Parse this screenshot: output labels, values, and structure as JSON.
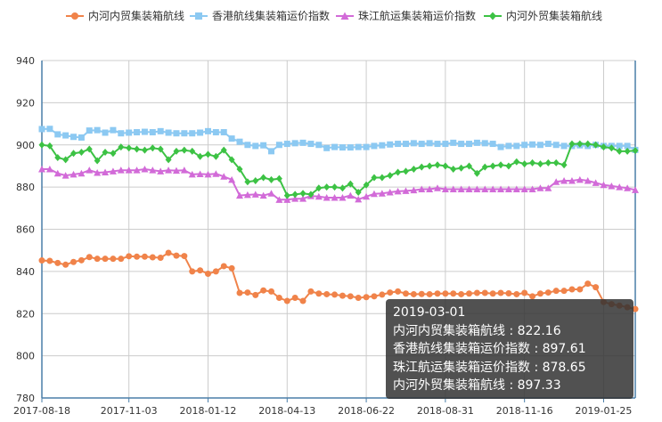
{
  "chart_data": {
    "type": "line",
    "ylim": [
      780,
      940
    ],
    "yticks": [
      780,
      800,
      820,
      840,
      860,
      880,
      900,
      920,
      940
    ],
    "x_tick_labels": [
      "2017-08-18",
      "2017-11-03",
      "2018-01-12",
      "2018-04-13",
      "2018-06-22",
      "2018-08-31",
      "2018-11-16",
      "2019-01-25"
    ],
    "x_tick_index": [
      0,
      11,
      21,
      31,
      41,
      51,
      61,
      71
    ],
    "grid": true,
    "legend_position": "top",
    "series": [
      {
        "name": "内河内贸集装箱航线",
        "color": "#f0834a",
        "marker": "circle",
        "values": [
          845.2,
          845.0,
          844.0,
          843.2,
          844.5,
          845.3,
          846.8,
          846.0,
          846.0,
          846.0,
          846.0,
          847.2,
          847.0,
          847.0,
          846.7,
          846.5,
          848.8,
          847.5,
          847.3,
          840.0,
          840.5,
          838.9,
          840.0,
          842.5,
          841.5,
          829.8,
          830.0,
          828.8,
          831.0,
          830.5,
          827.5,
          826.0,
          827.5,
          826.0,
          830.5,
          829.5,
          829.2,
          829.0,
          828.5,
          828.2,
          827.5,
          827.8,
          828.2,
          829.0,
          830.0,
          830.5,
          829.5,
          829.2,
          829.3,
          829.2,
          829.5,
          829.5,
          829.5,
          829.2,
          829.5,
          829.8,
          829.8,
          829.5,
          829.8,
          829.6,
          829.2,
          829.8,
          828.2,
          829.5,
          830.0,
          830.8,
          830.8,
          831.5,
          831.5,
          834.2,
          832.5,
          825.5,
          824.5,
          823.8,
          823.0,
          822.16
        ]
      },
      {
        "name": "香港航线集装箱运价指数",
        "color": "#8cc9f2",
        "marker": "square",
        "values": [
          907.5,
          907.6,
          905.0,
          904.5,
          903.8,
          903.5,
          906.8,
          907.0,
          905.8,
          907.0,
          905.5,
          905.8,
          906.0,
          906.2,
          906.0,
          906.5,
          905.8,
          905.5,
          905.5,
          905.5,
          905.8,
          906.5,
          906.0,
          906.0,
          903.0,
          901.5,
          900.0,
          899.5,
          899.8,
          897.0,
          900.0,
          900.5,
          900.8,
          901.0,
          900.5,
          900.0,
          898.5,
          899.0,
          898.8,
          898.8,
          899.0,
          899.0,
          899.5,
          899.8,
          900.2,
          900.5,
          900.5,
          900.8,
          900.5,
          900.8,
          900.5,
          900.5,
          901.0,
          900.5,
          900.5,
          901.0,
          900.8,
          900.5,
          899.0,
          899.5,
          899.5,
          900.0,
          900.2,
          900.0,
          900.5,
          900.0,
          899.5,
          899.5,
          899.8,
          899.5,
          900.0,
          899.5,
          899.5,
          899.5,
          899.5,
          897.61
        ]
      },
      {
        "name": "珠江航运集装箱运价指数",
        "color": "#d26bd8",
        "marker": "triangle",
        "values": [
          888.5,
          888.5,
          886.5,
          885.5,
          886.0,
          886.5,
          888.0,
          886.8,
          887.0,
          887.5,
          888.0,
          888.0,
          888.0,
          888.5,
          888.0,
          887.5,
          888.0,
          887.8,
          888.0,
          886.0,
          886.2,
          886.0,
          886.3,
          885.0,
          883.5,
          876.0,
          876.3,
          876.5,
          876.0,
          877.0,
          874.0,
          874.0,
          874.5,
          874.5,
          875.8,
          875.5,
          875.0,
          875.0,
          875.0,
          876.0,
          874.2,
          875.5,
          876.8,
          877.0,
          877.5,
          878.0,
          878.2,
          878.5,
          879.0,
          879.0,
          879.5,
          879.0,
          879.0,
          879.0,
          879.0,
          879.0,
          879.0,
          879.0,
          879.0,
          879.0,
          879.0,
          879.0,
          879.0,
          879.5,
          879.5,
          882.5,
          883.0,
          883.0,
          883.5,
          883.0,
          882.0,
          881.0,
          880.5,
          880.0,
          879.5,
          878.65
        ]
      },
      {
        "name": "内河外贸集装箱航线",
        "color": "#3cc244",
        "marker": "diamond",
        "values": [
          900.0,
          899.5,
          894.0,
          893.0,
          896.0,
          896.5,
          898.0,
          892.5,
          896.5,
          896.0,
          899.0,
          898.5,
          898.0,
          897.5,
          898.5,
          898.0,
          893.0,
          897.0,
          897.5,
          897.0,
          894.5,
          895.5,
          894.5,
          897.5,
          893.0,
          888.5,
          882.5,
          883.0,
          884.5,
          883.5,
          884.0,
          876.0,
          876.5,
          877.0,
          876.5,
          879.5,
          880.0,
          880.0,
          879.5,
          881.5,
          877.5,
          881.0,
          884.5,
          884.5,
          885.5,
          887.0,
          887.5,
          888.5,
          889.5,
          890.0,
          890.5,
          890.0,
          888.5,
          889.0,
          890.0,
          886.5,
          889.5,
          890.0,
          890.5,
          890.0,
          892.0,
          891.0,
          891.5,
          891.0,
          891.5,
          891.5,
          890.5,
          900.5,
          900.5,
          900.5,
          900.0,
          899.0,
          898.5,
          897.0,
          897.0,
          897.33
        ]
      }
    ]
  },
  "tooltip": {
    "date": "2019-03-01",
    "lines": [
      "内河内贸集装箱航线 : 822.16",
      "香港航线集装箱运价指数 : 897.61",
      "珠江航运集装箱运价指数 : 878.65",
      "内河外贸集装箱航线 : 897.33"
    ]
  }
}
